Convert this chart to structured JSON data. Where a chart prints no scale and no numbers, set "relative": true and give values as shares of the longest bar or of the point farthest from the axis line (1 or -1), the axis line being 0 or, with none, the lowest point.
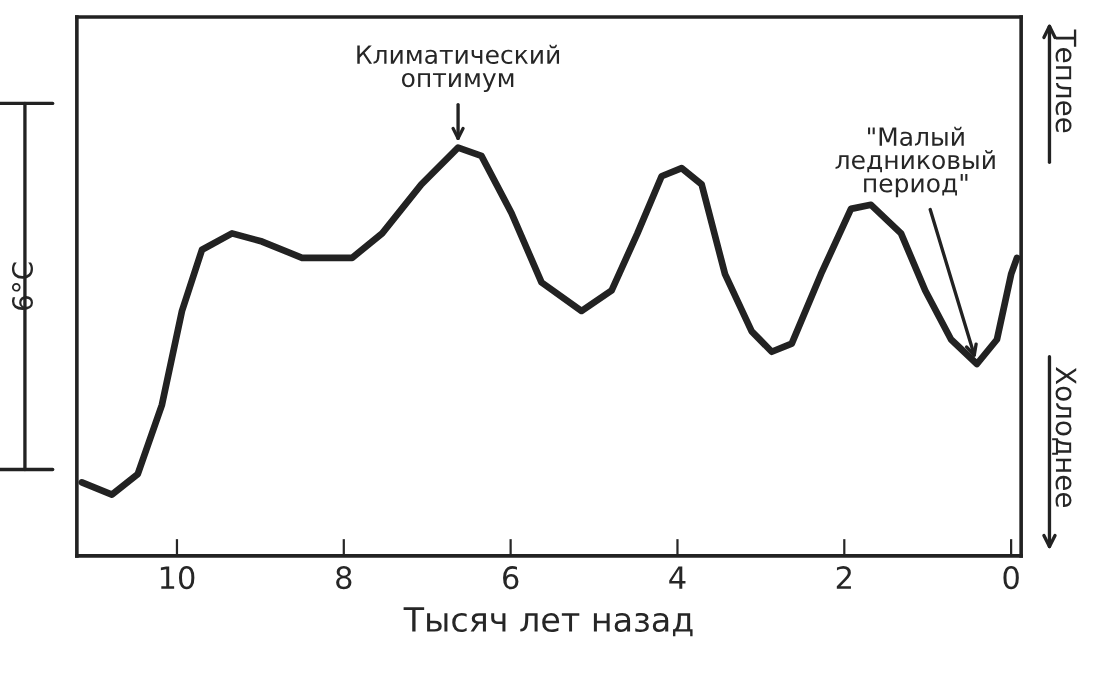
{
  "chart_data": {
    "type": "line",
    "relative": true,
    "xlabel": "Тысяч лет назад",
    "x": [
      11.14,
      10.78,
      10.47,
      10.18,
      9.94,
      9.7,
      9.34,
      8.98,
      8.5,
      7.9,
      7.54,
      7.07,
      6.63,
      6.35,
      5.99,
      5.63,
      5.15,
      4.79,
      4.48,
      4.19,
      3.95,
      3.71,
      3.43,
      3.11,
      2.87,
      2.63,
      2.28,
      1.92,
      1.68,
      1.32,
      1.03,
      0.72,
      0.41,
      0.17,
      0.0,
      -0.07
    ],
    "series": [
      {
        "color": "#222222",
        "values": [
          0.18,
          0.15,
          0.2,
          0.37,
          0.6,
          0.75,
          0.79,
          0.77,
          0.73,
          0.73,
          0.79,
          0.91,
          1.0,
          0.98,
          0.84,
          0.67,
          0.6,
          0.65,
          0.79,
          0.93,
          0.95,
          0.91,
          0.69,
          0.55,
          0.5,
          0.52,
          0.69,
          0.85,
          0.86,
          0.79,
          0.65,
          0.53,
          0.47,
          0.53,
          0.69,
          0.73
        ]
      }
    ],
    "xlim": [
      11.2,
      -0.12
    ],
    "xticks": [
      10,
      8,
      6,
      4,
      2,
      0
    ],
    "annotations": [
      {
        "text": "Климатический\nоптимум",
        "x": 6.63,
        "y": 1.0
      },
      {
        "text": "\"Малый\nледниковый\nпериод\"",
        "x": 0.41,
        "y": 0.47
      },
      "6°C",
      "Теплее",
      "Холоднее"
    ],
    "grid": false,
    "line_style": "solid",
    "marker": "none"
  }
}
